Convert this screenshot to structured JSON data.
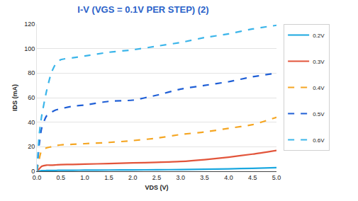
{
  "chart_data": {
    "type": "line",
    "title": "I-V (VGS = 0.1V PER STEP) (2)",
    "x_label": "VDS (V)",
    "y_label": "IDS (mA)",
    "x": [
      0,
      0.05,
      0.1,
      0.2,
      0.3,
      0.4,
      0.5,
      0.75,
      1.0,
      1.5,
      2.0,
      2.5,
      3.0,
      3.5,
      4.0,
      4.5,
      5.0
    ],
    "series": [
      {
        "name": "0.2V",
        "color": "#1ba8e0",
        "line_style": "solid",
        "values": [
          0,
          0.3,
          0.5,
          0.6,
          0.7,
          0.7,
          0.8,
          0.8,
          0.9,
          1.0,
          1.1,
          1.2,
          1.4,
          1.7,
          2.0,
          2.4,
          3.0
        ]
      },
      {
        "name": "0.3V",
        "color": "#e2553b",
        "line_style": "solid",
        "values": [
          0,
          2,
          4,
          5,
          5,
          5.2,
          5.4,
          5.6,
          5.8,
          6.3,
          6.8,
          7.3,
          8,
          9.5,
          11.5,
          14,
          17
        ]
      },
      {
        "name": "0.4V",
        "color": "#f5a623",
        "line_style": "dash",
        "values": [
          0,
          10,
          17,
          19,
          20,
          21,
          21.5,
          22,
          22.5,
          23.5,
          25,
          27,
          30,
          32,
          35,
          38,
          44
        ]
      },
      {
        "name": "0.5V",
        "color": "#1f5fd6",
        "line_style": "dash",
        "values": [
          0,
          22,
          35,
          45,
          48,
          50,
          51,
          53,
          54,
          57,
          58,
          62,
          67,
          70,
          73,
          77,
          80
        ]
      },
      {
        "name": "0.6V",
        "color": "#3bb5ea",
        "line_style": "dash",
        "values": [
          0,
          30,
          45,
          65,
          80,
          88,
          91,
          92.5,
          94,
          97,
          99,
          102,
          105,
          109,
          112,
          116,
          119
        ]
      }
    ],
    "xlim": [
      0,
      5
    ],
    "xticks": [
      {
        "value": 0,
        "label": "0.0"
      },
      0.5,
      {
        "value": 1,
        "label": "1.0"
      },
      1.5,
      {
        "value": 2,
        "label": "2.0"
      },
      2.5,
      {
        "value": 3,
        "label": "3.0"
      },
      3.5,
      {
        "value": 4,
        "label": "4.0"
      },
      4.5,
      {
        "value": 5,
        "label": "5.0"
      }
    ],
    "ylim": [
      0,
      120
    ],
    "yticks": [
      0,
      20,
      40,
      60,
      80,
      100,
      120
    ],
    "grid": true,
    "legend": "right"
  }
}
